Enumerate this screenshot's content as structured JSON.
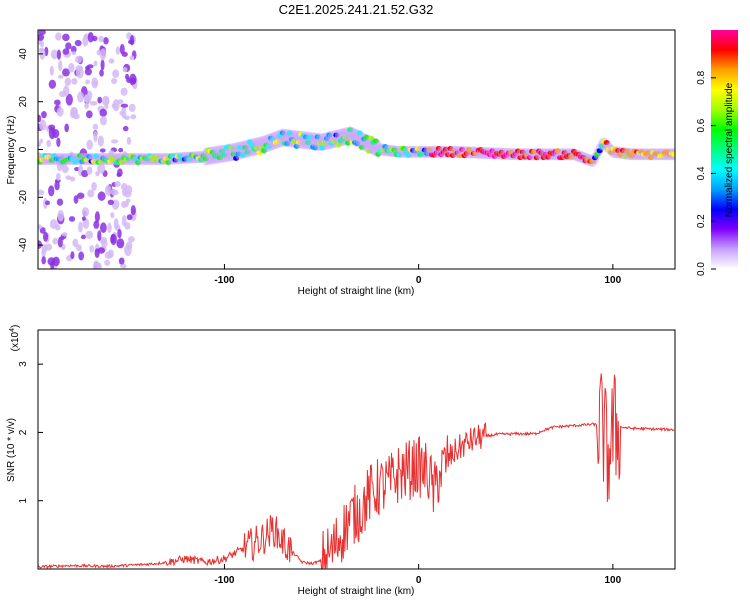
{
  "chart_data": [
    {
      "type": "heatmap",
      "title": "C2E1.2025.241.21.52.G32",
      "xlabel": "Height of straight line (km)",
      "ylabel": "Frequency (Hz)",
      "xlim": [
        -196,
        132
      ],
      "ylim": [
        -50,
        50
      ],
      "xticks": [
        -100,
        0,
        100
      ],
      "yticks": [
        40,
        20,
        0,
        -20,
        -40
      ],
      "colorbar": {
        "label": "Normalized spectral amplitude",
        "range": [
          0,
          1
        ],
        "ticks": [
          "0.0",
          "0.2",
          "0.4",
          "0.6",
          "0.8"
        ],
        "colors": [
          "#ffffff",
          "#c8a0ff",
          "#8000ff",
          "#0000ff",
          "#00a0ff",
          "#00ffff",
          "#00ff80",
          "#00ff00",
          "#a0ff00",
          "#ffff00",
          "#ffa000",
          "#ff0000",
          "#ff00a0"
        ]
      },
      "ridge": {
        "x": [
          -196,
          -170,
          -150,
          -130,
          -110,
          -95,
          -80,
          -70,
          -60,
          -50,
          -40,
          -35,
          -30,
          -25,
          -20,
          -10,
          0,
          20,
          50,
          80,
          90,
          95,
          100,
          110,
          132
        ],
        "frequency": [
          -4,
          -4,
          -4,
          -4,
          -3,
          -1,
          2,
          5,
          4,
          3,
          5,
          6,
          4,
          2,
          0,
          -1,
          -1,
          -1,
          -2,
          -2,
          -5,
          3,
          -1,
          -2,
          -2
        ]
      },
      "noise_band_x": [
        -196,
        -146
      ]
    },
    {
      "type": "line",
      "xlabel": "Height of straight line (km)",
      "ylabel": "SNR (10 * v/v)",
      "y_multiplier": "(x10^4)",
      "y_multiplier_base": "(x10",
      "y_multiplier_exp": "4",
      "xlim": [
        -196,
        132
      ],
      "ylim": [
        0,
        3.5
      ],
      "xticks": [
        -100,
        0,
        100
      ],
      "yticks": [
        1,
        2,
        3
      ],
      "color": "#e83030",
      "series": [
        {
          "name": "SNR",
          "x": [
            -196,
            -180,
            -160,
            -145,
            -135,
            -125,
            -120,
            -110,
            -100,
            -90,
            -80,
            -75,
            -70,
            -60,
            -55,
            -50,
            -45,
            -40,
            -35,
            -30,
            -25,
            -20,
            -15,
            -10,
            -5,
            0,
            5,
            8,
            10,
            15,
            20,
            25,
            30,
            40,
            50,
            60,
            65,
            70,
            80,
            90,
            95,
            97,
            100,
            103,
            110,
            120,
            132
          ],
          "y": [
            0.03,
            0.05,
            0.04,
            0.06,
            0.08,
            0.12,
            0.15,
            0.1,
            0.15,
            0.3,
            0.45,
            0.6,
            0.4,
            0.1,
            0.08,
            0.12,
            0.25,
            0.5,
            0.75,
            0.85,
            1.1,
            1.2,
            1.25,
            1.4,
            1.45,
            1.5,
            1.4,
            1.1,
            1.35,
            1.6,
            1.75,
            1.85,
            1.92,
            1.97,
            1.98,
            1.98,
            2.04,
            2.08,
            2.1,
            2.12,
            2.08,
            1.6,
            2.0,
            2.08,
            2.06,
            2.05,
            2.04
          ]
        }
      ]
    }
  ]
}
